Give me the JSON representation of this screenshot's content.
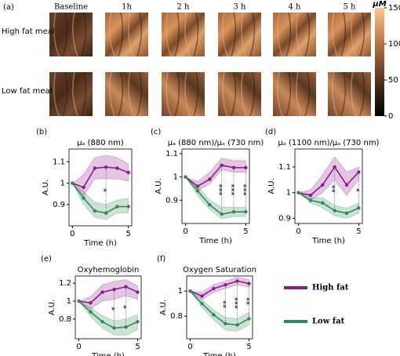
{
  "panel_a": {
    "panel_label": "(a)",
    "columns": [
      "Baseline",
      "1h",
      "2 h",
      "3 h",
      "4 h",
      "5 h"
    ],
    "rows": [
      "High fat meal",
      "Low fat meal"
    ],
    "colorbar": {
      "label": "μM",
      "lim": [
        0,
        150
      ],
      "ticks": [
        0,
        50,
        100,
        150
      ]
    }
  },
  "legend": [
    {
      "name": "High fat",
      "color": "#8b1a8b"
    },
    {
      "name": "Low fat",
      "color": "#2e8b57"
    }
  ],
  "chart_data": [
    {
      "type": "line",
      "panel_label": "(b)",
      "title": "μₐ (880 nm)",
      "xlabel": "Time (h)",
      "ylabel": "A.U.",
      "x": [
        0,
        1,
        2,
        3,
        4,
        5
      ],
      "xlim": [
        -0.3,
        5.3
      ],
      "xticks": [
        0,
        5
      ],
      "ylim": [
        0.8,
        1.16
      ],
      "yticks": [
        0.9,
        1.0,
        1.1
      ],
      "series": [
        {
          "color": "#8b1a8b",
          "values": [
            1.0,
            0.98,
            1.07,
            1.075,
            1.07,
            1.05
          ],
          "upper": [
            1.0,
            1.04,
            1.12,
            1.13,
            1.12,
            1.09
          ],
          "lower": [
            1.0,
            0.94,
            1.02,
            1.02,
            1.02,
            1.01
          ]
        },
        {
          "color": "#2e8b57",
          "values": [
            1.0,
            0.93,
            0.87,
            0.86,
            0.89,
            0.89
          ],
          "upper": [
            1.0,
            0.96,
            0.91,
            0.9,
            0.92,
            0.93
          ],
          "lower": [
            1.0,
            0.9,
            0.84,
            0.83,
            0.86,
            0.86
          ]
        }
      ],
      "annotations": [
        {
          "x": 3,
          "label": "*"
        }
      ]
    },
    {
      "type": "line",
      "panel_label": "(c)",
      "title": "μₐ (880 nm)/μₐ (730 nm)",
      "xlabel": "Time (h)",
      "ylabel": "A.U.",
      "x": [
        0,
        1,
        2,
        3,
        4,
        5
      ],
      "xlim": [
        -0.3,
        5.3
      ],
      "xticks": [
        0,
        5
      ],
      "ylim": [
        0.8,
        1.12
      ],
      "yticks": [
        0.9,
        1.0,
        1.1
      ],
      "series": [
        {
          "color": "#8b1a8b",
          "values": [
            1.0,
            0.96,
            0.99,
            1.05,
            1.04,
            1.04
          ],
          "upper": [
            1.0,
            0.98,
            1.02,
            1.08,
            1.07,
            1.07
          ],
          "lower": [
            1.0,
            0.94,
            0.97,
            1.03,
            1.02,
            1.02
          ]
        },
        {
          "color": "#2e8b57",
          "values": [
            1.0,
            0.94,
            0.88,
            0.84,
            0.85,
            0.85
          ],
          "upper": [
            1.0,
            0.96,
            0.9,
            0.87,
            0.87,
            0.87
          ],
          "lower": [
            1.0,
            0.92,
            0.86,
            0.82,
            0.83,
            0.83
          ]
        }
      ],
      "annotations": [
        {
          "x": 3,
          "label": "***"
        },
        {
          "x": 4,
          "label": "***"
        },
        {
          "x": 5,
          "label": "***"
        }
      ]
    },
    {
      "type": "line",
      "panel_label": "(d)",
      "title": "μₐ (1100 nm)/μₐ (730 nm)",
      "xlabel": "Time (h)",
      "ylabel": "A.U.",
      "x": [
        0,
        1,
        2,
        3,
        4,
        5
      ],
      "xlim": [
        -0.3,
        5.3
      ],
      "xticks": [
        0,
        5
      ],
      "ylim": [
        0.88,
        1.17
      ],
      "yticks": [
        0.9,
        1.0,
        1.1
      ],
      "series": [
        {
          "color": "#8b1a8b",
          "values": [
            1.0,
            0.99,
            1.03,
            1.1,
            1.03,
            1.08
          ],
          "upper": [
            1.0,
            1.01,
            1.07,
            1.14,
            1.08,
            1.1
          ],
          "lower": [
            1.0,
            0.97,
            1.0,
            1.05,
            0.99,
            1.05
          ]
        },
        {
          "color": "#2e8b57",
          "values": [
            1.0,
            0.97,
            0.96,
            0.93,
            0.92,
            0.94
          ],
          "upper": [
            1.0,
            0.98,
            0.98,
            0.95,
            0.94,
            0.96
          ],
          "lower": [
            1.0,
            0.96,
            0.94,
            0.91,
            0.9,
            0.92
          ]
        }
      ],
      "annotations": [
        {
          "x": 3,
          "label": "**"
        },
        {
          "x": 5,
          "label": "*"
        }
      ]
    },
    {
      "type": "line",
      "panel_label": "(e)",
      "title": "Oxyhemoglobin",
      "xlabel": "Time (h)",
      "ylabel": "A.U.",
      "x": [
        0,
        1,
        2,
        3,
        4,
        5
      ],
      "xlim": [
        -0.3,
        5.3
      ],
      "xticks": [
        0,
        5
      ],
      "ylim": [
        0.58,
        1.28
      ],
      "yticks": [
        0.8,
        1.0,
        1.2
      ],
      "series": [
        {
          "color": "#8b1a8b",
          "values": [
            1.0,
            0.98,
            1.1,
            1.13,
            1.16,
            1.1
          ],
          "upper": [
            1.0,
            1.05,
            1.18,
            1.22,
            1.24,
            1.17
          ],
          "lower": [
            1.0,
            0.91,
            1.0,
            1.02,
            1.06,
            1.02
          ]
        },
        {
          "color": "#2e8b57",
          "values": [
            1.0,
            0.88,
            0.77,
            0.7,
            0.71,
            0.77
          ],
          "upper": [
            1.0,
            0.93,
            0.84,
            0.78,
            0.8,
            0.85
          ],
          "lower": [
            1.0,
            0.83,
            0.7,
            0.62,
            0.62,
            0.68
          ]
        }
      ],
      "annotations": [
        {
          "x": 3,
          "label": "*"
        },
        {
          "x": 4,
          "label": "*"
        }
      ]
    },
    {
      "type": "line",
      "panel_label": "(f)",
      "title": "Oxygen Saturation",
      "xlabel": "Time (h)",
      "ylabel": "A.U.",
      "x": [
        0,
        1,
        2,
        3,
        4,
        5
      ],
      "xlim": [
        -0.3,
        5.3
      ],
      "xticks": [
        0,
        5
      ],
      "ylim": [
        0.62,
        1.12
      ],
      "yticks": [
        0.8,
        1.0
      ],
      "series": [
        {
          "color": "#8b1a8b",
          "values": [
            1.0,
            0.96,
            1.02,
            1.05,
            1.08,
            1.06
          ],
          "upper": [
            1.0,
            0.99,
            1.05,
            1.08,
            1.11,
            1.09
          ],
          "lower": [
            1.0,
            0.93,
            0.99,
            1.02,
            1.05,
            1.03
          ]
        },
        {
          "color": "#2e8b57",
          "values": [
            1.0,
            0.9,
            0.81,
            0.74,
            0.73,
            0.78
          ],
          "upper": [
            1.0,
            0.93,
            0.85,
            0.79,
            0.78,
            0.83
          ],
          "lower": [
            1.0,
            0.87,
            0.77,
            0.69,
            0.68,
            0.73
          ]
        }
      ],
      "annotations": [
        {
          "x": 3,
          "label": "**"
        },
        {
          "x": 4,
          "label": "***"
        },
        {
          "x": 5,
          "label": "**"
        }
      ]
    }
  ]
}
